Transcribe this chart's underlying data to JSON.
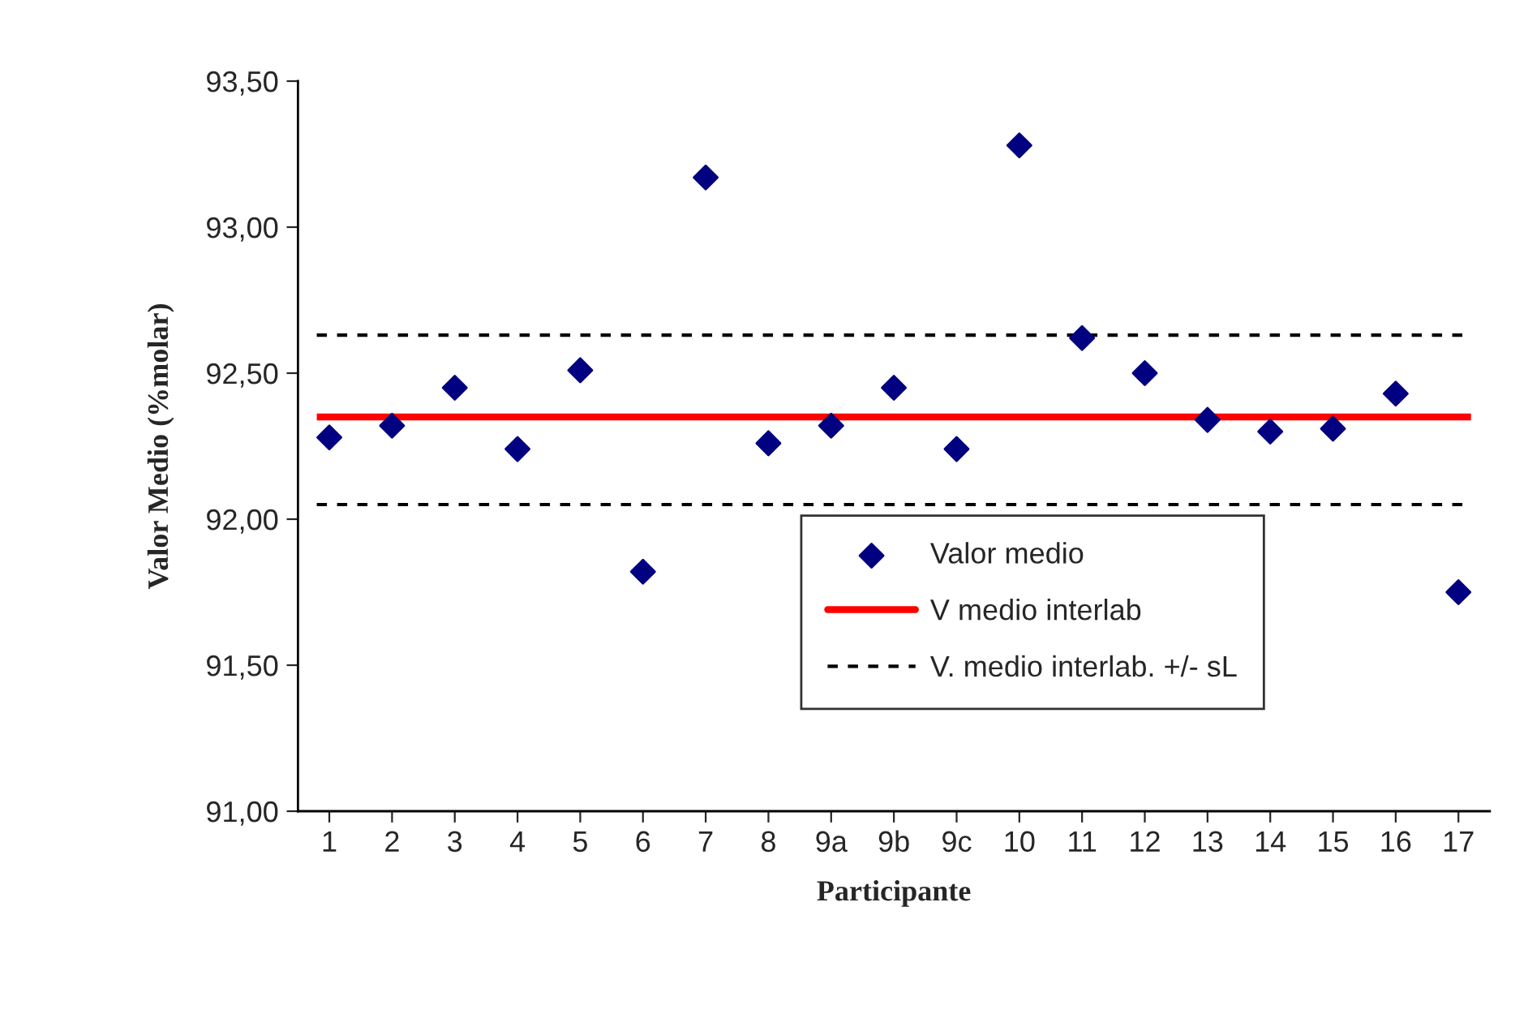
{
  "chart_data": {
    "type": "scatter",
    "xlabel": "Participante",
    "ylabel": "Valor Medio (%molar)",
    "categories": [
      "1",
      "2",
      "3",
      "4",
      "5",
      "6",
      "7",
      "8",
      "9a",
      "9b",
      "9c",
      "10",
      "11",
      "12",
      "13",
      "14",
      "15",
      "16",
      "17"
    ],
    "series": [
      {
        "name": "Valor medio",
        "color": "#000080",
        "values": [
          92.28,
          92.32,
          92.45,
          92.24,
          92.51,
          91.82,
          93.17,
          92.26,
          92.32,
          92.45,
          92.24,
          93.28,
          92.62,
          92.5,
          92.34,
          92.3,
          92.31,
          92.43,
          91.75
        ]
      }
    ],
    "marker": "diamond",
    "ref_lines": [
      {
        "axis": "y",
        "value": 92.35,
        "label": "V medio interlab",
        "color": "#ff0000",
        "line_style": "solid"
      },
      {
        "axis": "y",
        "value": 92.63,
        "label": "V. medio interlab. +/- sL",
        "color": "#000000",
        "line_style": "dashed"
      },
      {
        "axis": "y",
        "value": 92.05,
        "color": "#000000",
        "line_style": "dashed"
      }
    ],
    "ylim": [
      91.0,
      93.5
    ],
    "yticks": [
      {
        "value": 91.0,
        "label": "91,00"
      },
      {
        "value": 91.5,
        "label": "91,50"
      },
      {
        "value": 92.0,
        "label": "92,00"
      },
      {
        "value": 92.5,
        "label": "92,50"
      },
      {
        "value": 93.0,
        "label": "93,00"
      },
      {
        "value": 93.5,
        "label": "93,50"
      }
    ],
    "grid": false,
    "legend": "bottom right"
  }
}
